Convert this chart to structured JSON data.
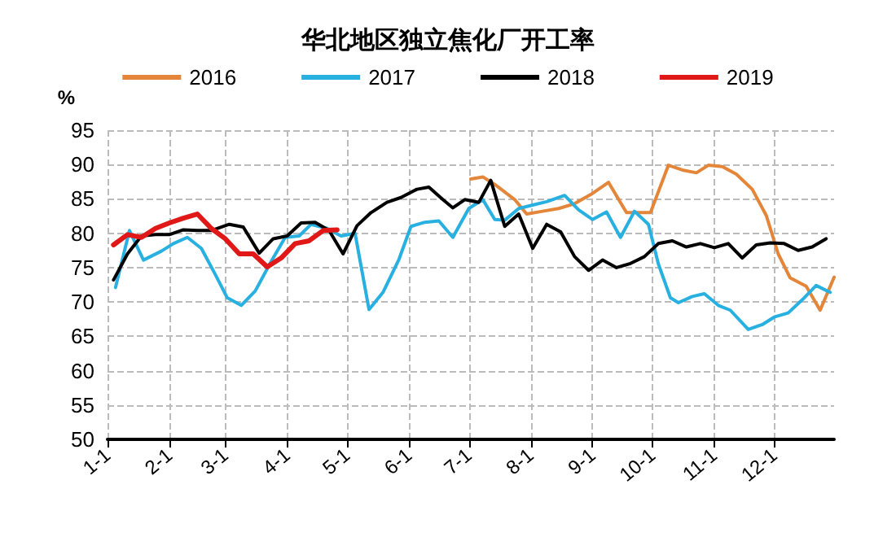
{
  "chart_data": {
    "type": "line",
    "title": "华北地区独立焦化厂开工率",
    "ylabel": "%",
    "xlim": [
      "--01-01",
      "--12-31"
    ],
    "xticks": [
      {
        "value": "--01-01",
        "label": "1-1"
      },
      {
        "value": "--02-01",
        "label": "2-1"
      },
      {
        "value": "--03-01",
        "label": "3-1"
      },
      {
        "value": "--04-01",
        "label": "4-1"
      },
      {
        "value": "--05-01",
        "label": "5-1"
      },
      {
        "value": "--06-01",
        "label": "6-1"
      },
      {
        "value": "--07-01",
        "label": "7-1"
      },
      {
        "value": "--08-01",
        "label": "8-1"
      },
      {
        "value": "--09-01",
        "label": "9-1"
      },
      {
        "value": "--10-01",
        "label": "10-1"
      },
      {
        "value": "--11-01",
        "label": "11-1"
      },
      {
        "value": "--12-01",
        "label": "12-1"
      }
    ],
    "ylim": [
      50,
      95
    ],
    "yticks": [
      50,
      55,
      60,
      65,
      70,
      75,
      80,
      85,
      90,
      95
    ],
    "grid": true,
    "legend": "top",
    "marker": "none",
    "line_style": "solid",
    "series": [
      {
        "name": "2016",
        "color": "#e3863a",
        "x": [
          "--07-02",
          "--07-08",
          "--07-14",
          "--07-24",
          "--07-30",
          "--08-07",
          "--08-15",
          "--08-23",
          "--09-01",
          "--09-09",
          "--09-18",
          "--09-30",
          "--10-09",
          "--10-16",
          "--10-23",
          "--10-29",
          "--11-05",
          "--11-12",
          "--11-20",
          "--11-27",
          "--12-03",
          "--12-09",
          "--12-17",
          "--12-24",
          "--12-31"
        ],
        "values": [
          87.9,
          88.2,
          87.1,
          84.9,
          82.8,
          83.2,
          83.6,
          84.3,
          85.8,
          87.4,
          83,
          83,
          89.9,
          89.2,
          88.8,
          89.9,
          89.7,
          88.6,
          86.4,
          82.6,
          77,
          73.5,
          72.3,
          68.8,
          73.6
        ]
      },
      {
        "name": "2017",
        "color": "#27b0e0",
        "x": [
          "--01-05",
          "--01-12",
          "--01-19",
          "--01-28",
          "--02-03",
          "--02-10",
          "--02-17",
          "--02-24",
          "--03-02",
          "--03-09",
          "--03-16",
          "--03-24",
          "--03-31",
          "--04-07",
          "--04-13",
          "--04-21",
          "--04-28",
          "--05-05",
          "--05-12",
          "--05-19",
          "--05-27",
          "--06-02",
          "--06-09",
          "--06-16",
          "--06-23",
          "--07-01",
          "--07-08",
          "--07-14",
          "--07-19",
          "--07-26",
          "--08-02",
          "--08-09",
          "--08-18",
          "--08-25",
          "--09-01",
          "--09-08",
          "--09-15",
          "--09-22",
          "--09-29",
          "--10-04",
          "--10-10",
          "--10-14",
          "--10-21",
          "--10-27",
          "--11-03",
          "--11-09",
          "--11-18",
          "--11-25",
          "--12-01",
          "--12-08",
          "--12-15",
          "--12-22",
          "--12-29"
        ],
        "values": [
          72.1,
          80.4,
          76.1,
          77.4,
          78.5,
          79.4,
          77.8,
          74,
          70.6,
          69.5,
          71.6,
          75.9,
          79.4,
          79.6,
          81.3,
          80.7,
          79.6,
          80,
          68.9,
          71.4,
          76.2,
          81,
          81.6,
          81.8,
          79.4,
          83.6,
          84.9,
          82,
          81.9,
          83.6,
          84.1,
          84.6,
          85.5,
          83.4,
          82,
          83.1,
          79.4,
          83.2,
          81.3,
          75.5,
          70.6,
          69.9,
          70.8,
          71.2,
          69.5,
          68.8,
          66,
          66.7,
          67.8,
          68.4,
          70.3,
          72.4,
          71.4
        ]
      },
      {
        "name": "2018",
        "color": "#000000",
        "x": [
          "--01-04",
          "--01-11",
          "--01-18",
          "--01-25",
          "--02-01",
          "--02-08",
          "--02-15",
          "--02-22",
          "--03-03",
          "--03-10",
          "--03-18",
          "--03-25",
          "--04-01",
          "--04-08",
          "--04-15",
          "--04-22",
          "--04-29",
          "--05-06",
          "--05-13",
          "--05-21",
          "--05-28",
          "--06-05",
          "--06-11",
          "--06-18",
          "--06-23",
          "--06-29",
          "--07-06",
          "--07-12",
          "--07-19",
          "--07-26",
          "--08-02",
          "--08-09",
          "--08-16",
          "--08-23",
          "--08-30",
          "--09-06",
          "--09-13",
          "--09-20",
          "--09-27",
          "--10-04",
          "--10-11",
          "--10-18",
          "--10-25",
          "--11-01",
          "--11-08",
          "--11-15",
          "--11-22",
          "--11-29",
          "--12-06",
          "--12-13",
          "--12-20",
          "--12-27"
        ],
        "values": [
          73.2,
          77,
          79.6,
          79.8,
          79.8,
          80.5,
          80.4,
          80.4,
          81.3,
          80.9,
          77.1,
          79.2,
          79.6,
          81.5,
          81.6,
          80.4,
          77,
          81.1,
          83,
          84.5,
          85.2,
          86.4,
          86.7,
          84.9,
          83.7,
          84.9,
          84.5,
          87.7,
          81,
          82.8,
          77.8,
          81.3,
          80.2,
          76.6,
          74.6,
          76.1,
          75,
          75.6,
          76.6,
          78.5,
          78.9,
          78,
          78.5,
          77.9,
          78.5,
          76.4,
          78.3,
          78.6,
          78.5,
          77.5,
          78,
          79.2
        ]
      },
      {
        "name": "2019",
        "color": "#e01818",
        "x": [
          "--01-04",
          "--01-11",
          "--01-18",
          "--01-25",
          "--02-01",
          "--02-08",
          "--02-15",
          "--02-22",
          "--03-01",
          "--03-08",
          "--03-15",
          "--03-22",
          "--03-29",
          "--04-05",
          "--04-12",
          "--04-19",
          "--04-26"
        ],
        "values": [
          78.3,
          79.8,
          79.4,
          80.7,
          81.5,
          82.2,
          82.8,
          80.7,
          79.2,
          77,
          77,
          75.1,
          76.4,
          78.5,
          78.9,
          80.4,
          80.5
        ]
      }
    ]
  }
}
